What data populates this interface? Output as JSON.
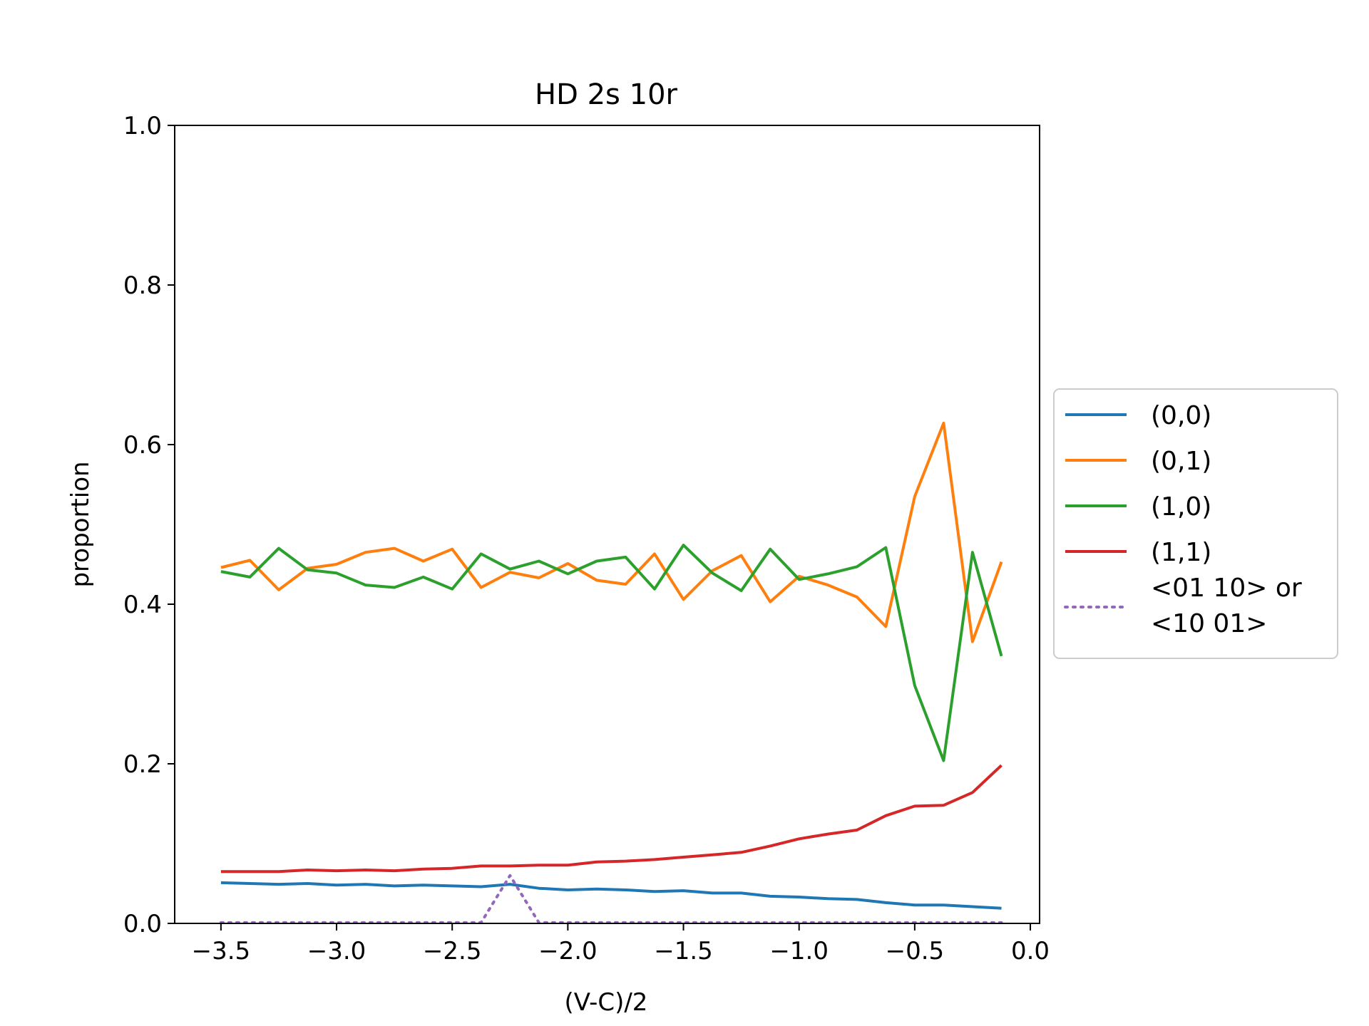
{
  "chart_data": {
    "type": "line",
    "title": "HD 2s 10r",
    "xlabel": "(V-C)/2",
    "ylabel": "proportion",
    "xlim": [
      -3.7,
      0.04
    ],
    "ylim": [
      0.0,
      1.0
    ],
    "xticks": [
      -3.5,
      -3.0,
      -2.5,
      -2.0,
      -1.5,
      -1.0,
      -0.5,
      0.0
    ],
    "xtick_labels": [
      "−3.5",
      "−3.0",
      "−2.5",
      "−2.0",
      "−1.5",
      "−1.0",
      "−0.5",
      "0.0"
    ],
    "yticks": [
      0.0,
      0.2,
      0.4,
      0.6,
      0.8,
      1.0
    ],
    "ytick_labels": [
      "0.0",
      "0.2",
      "0.4",
      "0.6",
      "0.8",
      "1.0"
    ],
    "grid": false,
    "legend_position": "center-right outside",
    "x": [
      -3.5,
      -3.375,
      -3.25,
      -3.125,
      -3.0,
      -2.875,
      -2.75,
      -2.625,
      -2.5,
      -2.375,
      -2.25,
      -2.125,
      -2.0,
      -1.875,
      -1.75,
      -1.625,
      -1.5,
      -1.375,
      -1.25,
      -1.125,
      -1.0,
      -0.875,
      -0.75,
      -0.625,
      -0.5,
      -0.375,
      -0.25,
      -0.125
    ],
    "series": [
      {
        "name": "(0,0)",
        "color": "#1f77b4",
        "style": "solid",
        "values": [
          0.051,
          0.05,
          0.049,
          0.05,
          0.048,
          0.049,
          0.047,
          0.048,
          0.047,
          0.046,
          0.049,
          0.044,
          0.042,
          0.043,
          0.042,
          0.04,
          0.041,
          0.038,
          0.038,
          0.034,
          0.033,
          0.031,
          0.03,
          0.026,
          0.023,
          0.023,
          0.021,
          0.019
        ]
      },
      {
        "name": "(0,1)",
        "color": "#ff7f0e",
        "style": "solid",
        "values": [
          0.446,
          0.455,
          0.418,
          0.445,
          0.45,
          0.465,
          0.47,
          0.454,
          0.469,
          0.421,
          0.44,
          0.433,
          0.451,
          0.43,
          0.425,
          0.463,
          0.406,
          0.442,
          0.461,
          0.403,
          0.435,
          0.424,
          0.409,
          0.372,
          0.535,
          0.627,
          0.353,
          0.453
        ]
      },
      {
        "name": "(1,0)",
        "color": "#2ca02c",
        "style": "solid",
        "values": [
          0.441,
          0.434,
          0.47,
          0.443,
          0.439,
          0.424,
          0.421,
          0.434,
          0.419,
          0.463,
          0.444,
          0.454,
          0.438,
          0.454,
          0.459,
          0.419,
          0.474,
          0.439,
          0.417,
          0.469,
          0.431,
          0.438,
          0.447,
          0.471,
          0.298,
          0.204,
          0.465,
          0.335
        ]
      },
      {
        "name": "(1,1)",
        "color": "#d62728",
        "style": "solid",
        "values": [
          0.065,
          0.065,
          0.065,
          0.067,
          0.066,
          0.067,
          0.066,
          0.068,
          0.069,
          0.072,
          0.072,
          0.073,
          0.073,
          0.077,
          0.078,
          0.08,
          0.083,
          0.086,
          0.089,
          0.097,
          0.106,
          0.112,
          0.117,
          0.135,
          0.147,
          0.148,
          0.164,
          0.198
        ]
      },
      {
        "name": "<01 10> or <10 01>",
        "legend_lines": [
          "<01 10> or",
          "<10 01>"
        ],
        "color": "#9467bd",
        "style": "dotted",
        "values": [
          0.001,
          0.001,
          0.001,
          0.001,
          0.001,
          0.001,
          0.001,
          0.001,
          0.001,
          0.001,
          0.06,
          0.001,
          0.001,
          0.001,
          0.001,
          0.001,
          0.001,
          0.001,
          0.001,
          0.001,
          0.001,
          0.001,
          0.001,
          0.001,
          0.001,
          0.001,
          0.001,
          0.001
        ]
      }
    ]
  }
}
